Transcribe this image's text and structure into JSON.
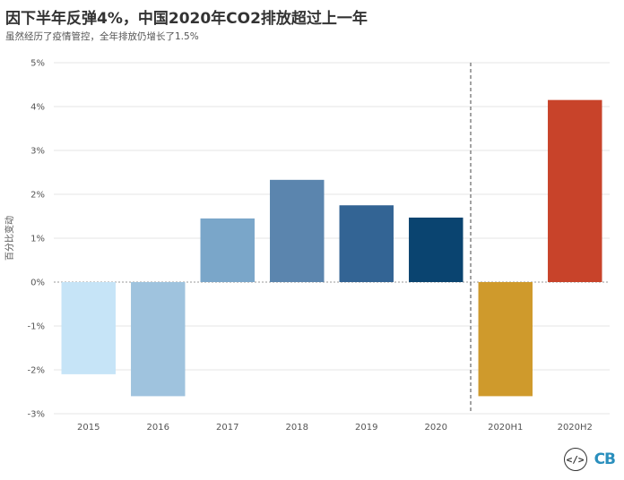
{
  "title": "因下半年反弹4%，中国2020年CO2排放超过上一年",
  "subtitle": "虽然经历了疫情管控，全年排放仍增长了1.5%",
  "footer": {
    "logo_text": "CB",
    "embed_icon": "code-embed-icon"
  },
  "chart_data": {
    "type": "bar",
    "title": "因下半年反弹4%，中国2020年CO2排放超过上一年",
    "subtitle": "虽然经历了疫情管控，全年排放仍增长了1.5%",
    "xlabel": "",
    "ylabel": "百分比变动",
    "categories": [
      "2015",
      "2016",
      "2017",
      "2018",
      "2019",
      "2020",
      "2020H1",
      "2020H2"
    ],
    "values": [
      -2.1,
      -2.6,
      1.45,
      2.33,
      1.75,
      1.47,
      -2.6,
      4.15
    ],
    "colors": [
      "#c6e4f7",
      "#9fc3de",
      "#7aa6c9",
      "#5b85ae",
      "#336494",
      "#0a4470",
      "#cf9a2c",
      "#c8432a"
    ],
    "ylim": [
      -3,
      5
    ],
    "yticks": [
      -3,
      -2,
      -1,
      0,
      1,
      2,
      3,
      4,
      5
    ],
    "ytick_labels": [
      "-3%",
      "-2%",
      "-1%",
      "0%",
      "1%",
      "2%",
      "3%",
      "4%",
      "5%"
    ],
    "grid": true,
    "divider_after_category": "2020"
  }
}
